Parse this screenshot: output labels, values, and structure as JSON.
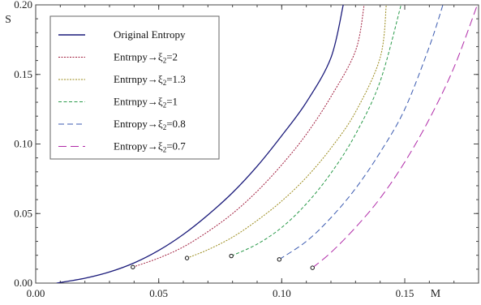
{
  "chart_data": {
    "type": "line",
    "title": "",
    "xlabel": "M",
    "ylabel": "S",
    "xlim": [
      0.0,
      0.18
    ],
    "ylim": [
      0.0,
      0.2
    ],
    "xticks": [
      "0.00",
      "0.05",
      "0.10",
      "0.15"
    ],
    "yticks": [
      "0.00",
      "0.05",
      "0.10",
      "0.15",
      "0.20"
    ],
    "grid": false,
    "legend_position": "top-left",
    "series": [
      {
        "name": "Original Entropy",
        "color": "#1a1a7a",
        "dash": "solid",
        "x": [
          0.0085,
          0.02,
          0.03,
          0.04,
          0.05,
          0.06,
          0.07,
          0.08,
          0.09,
          0.1,
          0.11,
          0.12,
          0.125
        ],
        "y": [
          0.0,
          0.0035,
          0.008,
          0.0145,
          0.0235,
          0.035,
          0.049,
          0.065,
          0.084,
          0.106,
          0.13,
          0.162,
          0.2
        ]
      },
      {
        "name": "Entrnpy→ξ2=2",
        "color": "#a01c3c",
        "dash": "dotted",
        "x": [
          0.0395,
          0.05,
          0.06,
          0.07,
          0.08,
          0.09,
          0.1,
          0.11,
          0.12,
          0.13,
          0.1335
        ],
        "y": [
          0.0115,
          0.018,
          0.026,
          0.037,
          0.05,
          0.066,
          0.085,
          0.107,
          0.134,
          0.167,
          0.2
        ]
      },
      {
        "name": "Entrnpy→ξ2=1.3",
        "color": "#9a8a1a",
        "dash": "dotted",
        "x": [
          0.0615,
          0.07,
          0.08,
          0.09,
          0.1,
          0.11,
          0.12,
          0.13,
          0.14,
          0.1425
        ],
        "y": [
          0.018,
          0.024,
          0.033,
          0.045,
          0.059,
          0.076,
          0.097,
          0.123,
          0.162,
          0.2
        ]
      },
      {
        "name": "Entrnpy→ξ2=1",
        "color": "#2a9a4a",
        "dash": "dash-short",
        "x": [
          0.0795,
          0.09,
          0.1,
          0.11,
          0.12,
          0.13,
          0.14,
          0.1485
        ],
        "y": [
          0.0195,
          0.028,
          0.04,
          0.057,
          0.079,
          0.107,
          0.145,
          0.2
        ]
      },
      {
        "name": "Entropy→ξ2=0.8",
        "color": "#3a5ab0",
        "dash": "dash",
        "x": [
          0.099,
          0.11,
          0.12,
          0.13,
          0.14,
          0.15,
          0.16,
          0.1655
        ],
        "y": [
          0.017,
          0.03,
          0.047,
          0.068,
          0.094,
          0.125,
          0.17,
          0.2
        ]
      },
      {
        "name": "Entropy→ξ2=0.7",
        "color": "#b02aa8",
        "dash": "dash-long",
        "x": [
          0.1125,
          0.12,
          0.13,
          0.14,
          0.15,
          0.16,
          0.17,
          0.1795
        ],
        "y": [
          0.011,
          0.022,
          0.04,
          0.061,
          0.087,
          0.118,
          0.155,
          0.2
        ]
      }
    ],
    "markers": {
      "description": "open circles at curve start points",
      "points": [
        {
          "x": 0.0395,
          "y": 0.0115
        },
        {
          "x": 0.0615,
          "y": 0.018
        },
        {
          "x": 0.0795,
          "y": 0.0195
        },
        {
          "x": 0.099,
          "y": 0.017
        },
        {
          "x": 0.1125,
          "y": 0.011
        }
      ]
    }
  }
}
